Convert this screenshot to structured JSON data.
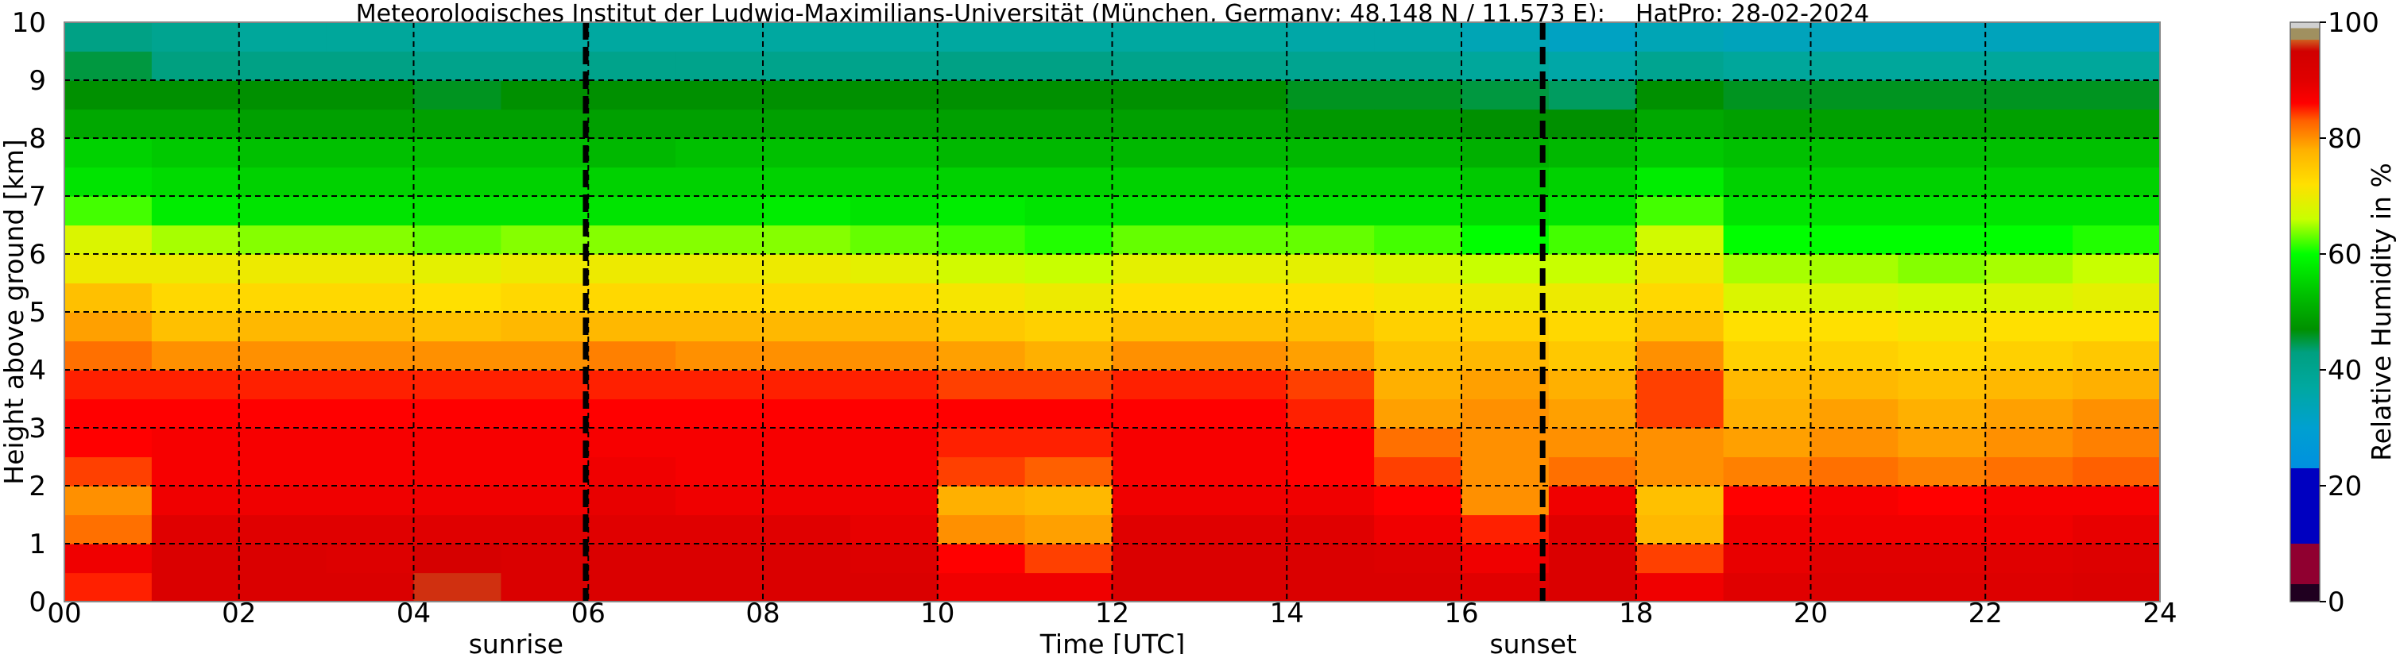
{
  "chart_data": {
    "type": "heatmap",
    "title": "Meteorologisches Institut der Ludwig-Maximilians-Universität (München, Germany; 48.148 N / 11.573 E):    HatPro: 28-02-2024",
    "xlabel": "Time [UTC]",
    "ylabel": "Height above ground [km]",
    "xlim": [
      0,
      24
    ],
    "ylim": [
      0,
      10
    ],
    "x_ticks": [
      "00",
      "02",
      "04",
      "06",
      "08",
      "10",
      "12",
      "14",
      "16",
      "18",
      "20",
      "22",
      "24"
    ],
    "y_ticks": [
      "0",
      "1",
      "2",
      "3",
      "4",
      "5",
      "6",
      "7",
      "8",
      "9",
      "10"
    ],
    "grid": true,
    "colorbar": {
      "label": "Relative Humidity in %",
      "range": [
        0,
        100
      ],
      "ticks": [
        "0",
        "20",
        "40",
        "60",
        "80",
        "100"
      ],
      "stops": [
        [
          0,
          "#200020"
        ],
        [
          3,
          "#200020"
        ],
        [
          3,
          "#900030"
        ],
        [
          10,
          "#900030"
        ],
        [
          10,
          "#0000c0"
        ],
        [
          23,
          "#0000c0"
        ],
        [
          23,
          "#0090e0"
        ],
        [
          30,
          "#00a0d0"
        ],
        [
          37,
          "#00a8a0"
        ],
        [
          43,
          "#00a080"
        ],
        [
          47,
          "#009000"
        ],
        [
          53,
          "#00c000"
        ],
        [
          60,
          "#00ff00"
        ],
        [
          66,
          "#c8ff00"
        ],
        [
          72,
          "#ffe000"
        ],
        [
          78,
          "#ffb000"
        ],
        [
          83,
          "#ff6000"
        ],
        [
          86,
          "#ff0000"
        ],
        [
          90,
          "#e00000"
        ],
        [
          95,
          "#d00000"
        ],
        [
          96,
          "#d03010"
        ],
        [
          97,
          "#d06020"
        ],
        [
          97,
          "#a09060"
        ],
        [
          99,
          "#a09060"
        ],
        [
          99,
          "#d0d0d0"
        ],
        [
          100,
          "#d0d0d0"
        ]
      ]
    },
    "time_centers_utc": [
      0.5,
      1.5,
      2.5,
      3.5,
      4.5,
      5.5,
      6.5,
      7.5,
      8.5,
      9.5,
      10.5,
      11.5,
      12.5,
      13.5,
      14.5,
      15.5,
      16.5,
      17.5,
      18.5,
      19.5,
      20.5,
      21.5,
      22.5,
      23.5
    ],
    "height_centers_km": [
      0.25,
      0.75,
      1.25,
      1.75,
      2.25,
      2.75,
      3.25,
      3.75,
      4.25,
      4.75,
      5.25,
      5.75,
      6.25,
      6.75,
      7.25,
      7.75,
      8.25,
      8.75,
      9.25,
      9.75
    ],
    "values": [
      [
        85,
        88,
        82,
        80,
        84,
        86,
        86,
        85,
        82,
        79,
        76,
        70,
        68,
        62,
        57,
        55,
        50,
        47,
        45,
        42
      ],
      [
        92,
        92,
        90,
        88,
        87,
        87,
        86,
        85,
        80,
        76,
        73,
        70,
        65,
        58,
        56,
        54,
        50,
        47,
        43,
        40
      ],
      [
        92,
        92,
        90,
        88,
        87,
        87,
        86,
        85,
        80,
        77,
        73,
        70,
        64,
        57,
        55,
        53,
        49,
        47,
        42,
        38
      ],
      [
        92,
        91,
        90,
        88,
        87,
        87,
        86,
        85,
        80,
        77,
        73,
        70,
        64,
        57,
        55,
        53,
        49,
        47,
        42,
        38
      ],
      [
        96,
        93,
        90,
        88,
        87,
        87,
        86,
        85,
        80,
        76,
        72,
        69,
        63,
        57,
        55,
        53,
        49,
        46,
        41,
        37
      ],
      [
        92,
        92,
        90,
        88,
        87,
        87,
        86,
        85,
        80,
        77,
        73,
        70,
        64,
        57,
        55,
        53,
        49,
        47,
        41,
        37
      ],
      [
        92,
        92,
        90,
        89,
        88,
        87,
        86,
        85,
        81,
        77,
        73,
        70,
        64,
        57,
        55,
        52,
        49,
        47,
        41,
        37
      ],
      [
        92,
        92,
        90,
        88,
        87,
        87,
        86,
        85,
        80,
        77,
        73,
        70,
        64,
        57,
        55,
        53,
        49,
        47,
        41,
        37
      ],
      [
        92,
        92,
        90,
        88,
        87,
        87,
        86,
        85,
        80,
        77,
        73,
        70,
        64,
        58,
        55,
        53,
        49,
        47,
        41,
        37
      ],
      [
        92,
        91,
        89,
        88,
        87,
        87,
        86,
        85,
        80,
        77,
        73,
        69,
        63,
        57,
        55,
        53,
        49,
        47,
        41,
        37
      ],
      [
        88,
        86,
        80,
        78,
        84,
        85,
        86,
        84,
        79,
        75,
        71,
        67,
        62,
        58,
        55,
        52,
        49,
        47,
        42,
        37
      ],
      [
        88,
        84,
        79,
        77,
        83,
        85,
        86,
        84,
        78,
        74,
        70,
        66,
        61,
        57,
        55,
        52,
        49,
        47,
        42,
        37
      ],
      [
        92,
        92,
        90,
        88,
        87,
        87,
        86,
        85,
        80,
        76,
        72,
        69,
        63,
        57,
        55,
        52,
        49,
        47,
        41,
        37
      ],
      [
        92,
        92,
        90,
        88,
        87,
        87,
        86,
        85,
        80,
        76,
        72,
        69,
        63,
        57,
        55,
        52,
        49,
        47,
        41,
        37
      ],
      [
        92,
        92,
        90,
        88,
        86,
        86,
        85,
        84,
        79,
        76,
        72,
        69,
        63,
        57,
        55,
        52,
        48,
        46,
        40,
        36
      ],
      [
        92,
        91,
        88,
        86,
        84,
        82,
        79,
        78,
        76,
        74,
        71,
        68,
        62,
        57,
        55,
        52,
        48,
        46,
        40,
        36
      ],
      [
        90,
        88,
        85,
        80,
        80,
        80,
        80,
        79,
        77,
        74,
        70,
        66,
        60,
        56,
        54,
        51,
        47,
        45,
        38,
        34
      ],
      [
        92,
        92,
        90,
        88,
        82,
        80,
        79,
        78,
        75,
        73,
        70,
        66,
        62,
        57,
        55,
        52,
        47,
        44,
        36,
        32
      ],
      [
        88,
        84,
        77,
        76,
        80,
        80,
        84,
        84,
        80,
        76,
        73,
        70,
        67,
        62,
        58,
        54,
        50,
        47,
        40,
        34
      ],
      [
        90,
        89,
        88,
        86,
        81,
        79,
        78,
        77,
        74,
        72,
        68,
        65,
        60,
        57,
        55,
        53,
        49,
        46,
        38,
        33
      ],
      [
        91,
        90,
        88,
        87,
        82,
        80,
        79,
        77,
        74,
        72,
        68,
        65,
        60,
        57,
        55,
        53,
        49,
        46,
        38,
        33
      ],
      [
        91,
        90,
        88,
        86,
        81,
        79,
        78,
        76,
        73,
        71,
        67,
        64,
        60,
        57,
        55,
        53,
        49,
        46,
        38,
        33
      ],
      [
        91,
        90,
        88,
        87,
        82,
        80,
        79,
        77,
        74,
        72,
        68,
        65,
        60,
        57,
        55,
        53,
        49,
        46,
        38,
        33
      ],
      [
        92,
        91,
        89,
        87,
        83,
        81,
        80,
        78,
        75,
        72,
        69,
        66,
        61,
        57,
        55,
        53,
        49,
        46,
        38,
        33
      ]
    ],
    "annotations": [
      {
        "label": "sunrise",
        "x": 5.97
      },
      {
        "label": "sunset",
        "x": 16.93
      }
    ]
  }
}
